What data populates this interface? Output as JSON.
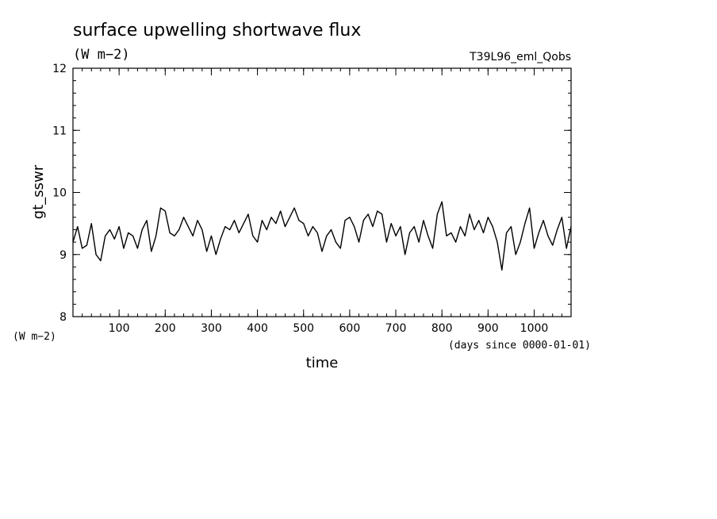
{
  "chart_data": {
    "type": "line",
    "title": "surface upwelling shortwave flux",
    "subtitle": "(W m−2)",
    "run_label": "T39L96_eml_Qobs",
    "xlabel": "time",
    "x_unit": "(days since 0000-01-01)",
    "ylabel": "gt_sswr",
    "y_unit": "(W m−2)",
    "xlim": [
      0,
      1080
    ],
    "ylim": [
      8,
      12
    ],
    "x_ticks": [
      100,
      200,
      300,
      400,
      500,
      600,
      700,
      800,
      900,
      1000
    ],
    "x_tick_labels": [
      "100",
      "200",
      "300",
      "400",
      "500",
      "600",
      "700",
      "800",
      "900",
      "1000"
    ],
    "y_ticks": [
      8,
      9,
      10,
      11,
      12
    ],
    "y_tick_labels": [
      "8",
      "9",
      "10",
      "11",
      "12"
    ],
    "grid": false,
    "series": [
      {
        "x": [
          0,
          10,
          20,
          30,
          40,
          50,
          60,
          70,
          80,
          90,
          100,
          110,
          120,
          130,
          140,
          150,
          160,
          170,
          180,
          190,
          200,
          210,
          220,
          230,
          240,
          250,
          260,
          270,
          280,
          290,
          300,
          310,
          320,
          330,
          340,
          350,
          360,
          370,
          380,
          390,
          400,
          410,
          420,
          430,
          440,
          450,
          460,
          470,
          480,
          490,
          500,
          510,
          520,
          530,
          540,
          550,
          560,
          570,
          580,
          590,
          600,
          610,
          620,
          630,
          640,
          650,
          660,
          670,
          680,
          690,
          700,
          710,
          720,
          730,
          740,
          750,
          760,
          770,
          780,
          790,
          800,
          810,
          820,
          830,
          840,
          850,
          860,
          870,
          880,
          890,
          900,
          910,
          920,
          930,
          940,
          950,
          960,
          970,
          980,
          990,
          1000,
          1010,
          1020,
          1030,
          1040,
          1050,
          1060,
          1070,
          1080
        ],
        "y": [
          9.2,
          9.45,
          9.1,
          9.15,
          9.5,
          9.0,
          8.9,
          9.3,
          9.4,
          9.25,
          9.45,
          9.1,
          9.35,
          9.3,
          9.1,
          9.4,
          9.55,
          9.05,
          9.3,
          9.75,
          9.7,
          9.35,
          9.3,
          9.4,
          9.6,
          9.45,
          9.3,
          9.55,
          9.4,
          9.05,
          9.3,
          9.0,
          9.25,
          9.45,
          9.4,
          9.55,
          9.35,
          9.5,
          9.65,
          9.3,
          9.2,
          9.55,
          9.4,
          9.6,
          9.5,
          9.7,
          9.45,
          9.6,
          9.75,
          9.55,
          9.5,
          9.3,
          9.45,
          9.35,
          9.05,
          9.3,
          9.4,
          9.2,
          9.1,
          9.55,
          9.6,
          9.45,
          9.2,
          9.55,
          9.65,
          9.45,
          9.7,
          9.65,
          9.2,
          9.5,
          9.3,
          9.45,
          9.0,
          9.35,
          9.45,
          9.2,
          9.55,
          9.3,
          9.1,
          9.65,
          9.85,
          9.3,
          9.35,
          9.2,
          9.45,
          9.3,
          9.65,
          9.4,
          9.55,
          9.35,
          9.6,
          9.45,
          9.2,
          8.75,
          9.35,
          9.45,
          9.0,
          9.2,
          9.5,
          9.75,
          9.1,
          9.35,
          9.55,
          9.3,
          9.15,
          9.4,
          9.6,
          9.1,
          9.45
        ]
      }
    ]
  }
}
